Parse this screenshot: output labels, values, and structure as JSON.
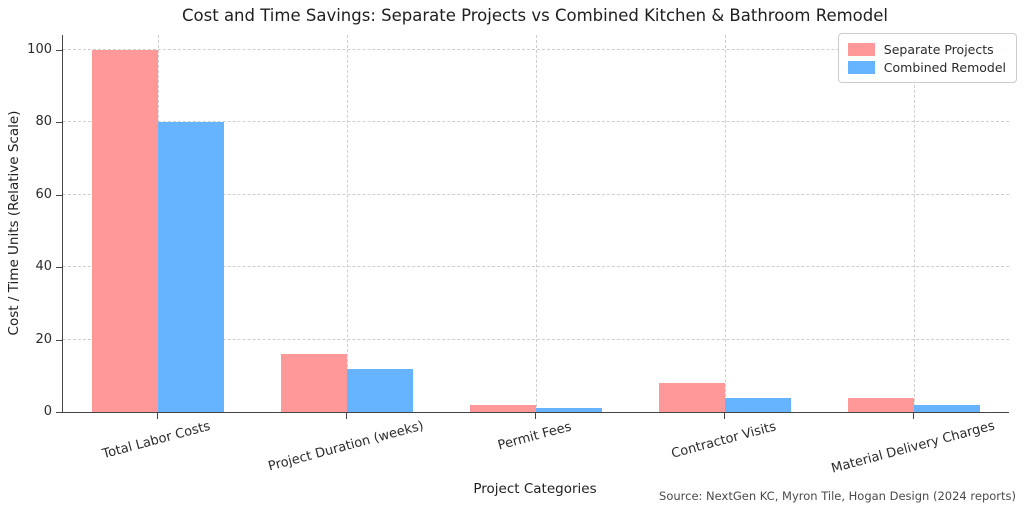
{
  "title": "Cost and Time Savings: Separate Projects vs Combined Kitchen & Bathroom Remodel",
  "source_note": "Source: NextGen KC, Myron Tile, Hogan Design (2024 reports)",
  "chart_data": {
    "type": "bar",
    "title": "Cost and Time Savings: Separate Projects vs Combined Kitchen & Bathroom Remodel",
    "xlabel": "Project Categories",
    "ylabel": "Cost / Time Units (Relative Scale)",
    "categories": [
      "Total Labor Costs",
      "Project Duration (weeks)",
      "Permit Fees",
      "Contractor Visits",
      "Material Delivery Charges"
    ],
    "series": [
      {
        "name": "Separate Projects",
        "color": "#ff9999",
        "values": [
          100,
          16,
          2,
          8,
          4
        ]
      },
      {
        "name": "Combined Remodel",
        "color": "#66b3ff",
        "values": [
          80,
          12,
          1,
          4,
          2
        ]
      }
    ],
    "yticks": [
      0,
      20,
      40,
      60,
      80,
      100
    ],
    "ylim": [
      0,
      104
    ],
    "grid": true,
    "grid_style": "dashed",
    "legend_position": "top-right",
    "annotation": "Source: NextGen KC, Myron Tile, Hogan Design (2024 reports)"
  }
}
